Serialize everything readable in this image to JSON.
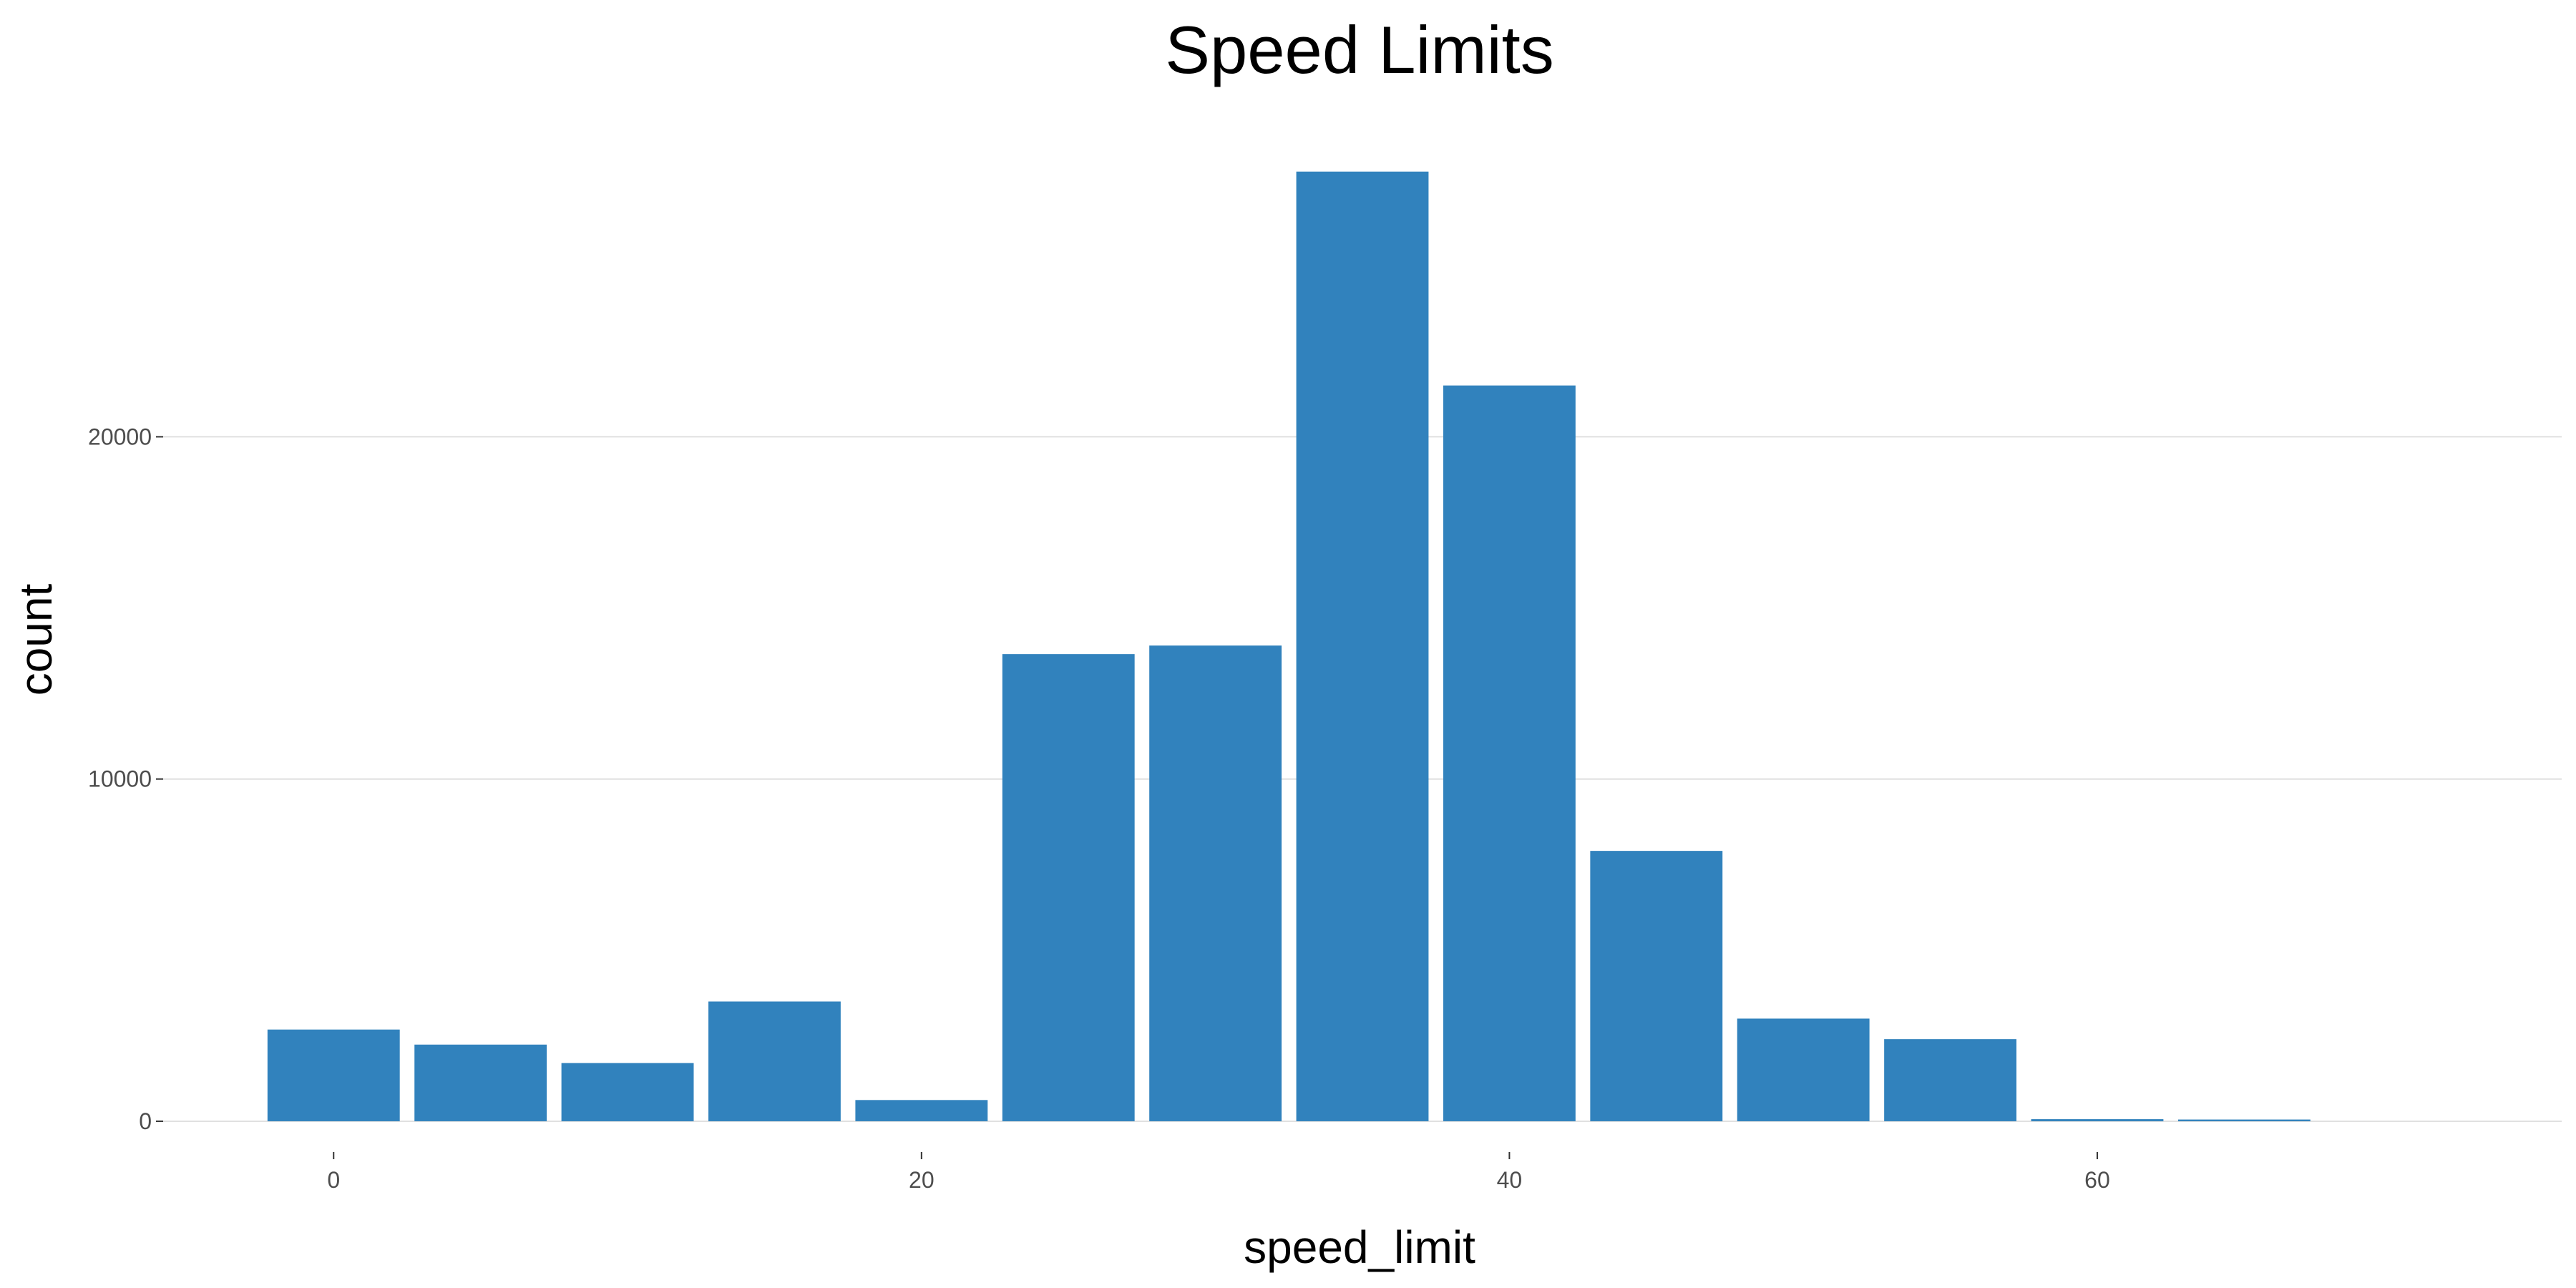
{
  "chart_data": {
    "type": "bar",
    "title": "Speed Limits",
    "xlabel": "speed_limit",
    "ylabel": "count",
    "x": [
      0,
      5,
      10,
      15,
      20,
      25,
      30,
      35,
      40,
      45,
      50,
      55,
      60,
      65
    ],
    "values": [
      2680,
      2240,
      1700,
      3500,
      620,
      13650,
      13900,
      27750,
      21500,
      7900,
      3000,
      2400,
      60,
      50
    ],
    "bar_width": 4.5,
    "xlim": [
      -5.8,
      75.8
    ],
    "ylim": [
      -900,
      29000
    ],
    "x_ticks": [
      0,
      20,
      40,
      60
    ],
    "x_tick_labels": [
      "0",
      "20",
      "40",
      "60"
    ],
    "y_ticks": [
      0,
      10000,
      20000
    ],
    "y_tick_labels": [
      "0",
      "10000",
      "20000"
    ],
    "grid": true,
    "bar_color": "#3182bd",
    "background": "#ffffff",
    "grid_color": "#e0e0e0"
  }
}
